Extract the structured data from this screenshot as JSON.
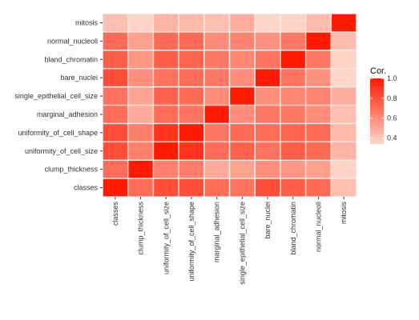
{
  "chart_data": {
    "type": "heatmap",
    "title": "",
    "xlabel": "",
    "ylabel": "",
    "variables": [
      "classes",
      "clump_thickness",
      "uniformity_of_cell_size",
      "uniformity_of_cell_shape",
      "marginal_adhesion",
      "single_epithelial_cell_size",
      "bare_nuclei",
      "bland_chromatin",
      "normal_nucleoli",
      "mitosis"
    ],
    "x_categories": [
      "classes",
      "clump_thickness",
      "uniformity_of_cell_size",
      "uniformity_of_cell_shape",
      "marginal_adhesion",
      "single_epithelial_cell_size",
      "bare_nuclei",
      "bland_chromatin",
      "normal_nucleoli",
      "mitosis"
    ],
    "y_categories_bottom_to_top": [
      "classes",
      "clump_thickness",
      "uniformity_of_cell_size",
      "uniformity_of_cell_shape",
      "marginal_adhesion",
      "single_epithelial_cell_size",
      "bare_nuclei",
      "bland_chromatin",
      "normal_nucleoli",
      "mitosis"
    ],
    "matrix": [
      [
        1.0,
        0.71,
        0.82,
        0.82,
        0.71,
        0.69,
        0.82,
        0.76,
        0.72,
        0.42
      ],
      [
        0.71,
        1.0,
        0.64,
        0.65,
        0.49,
        0.52,
        0.59,
        0.56,
        0.53,
        0.35
      ],
      [
        0.82,
        0.64,
        1.0,
        0.91,
        0.71,
        0.75,
        0.69,
        0.76,
        0.72,
        0.46
      ],
      [
        0.82,
        0.65,
        0.91,
        1.0,
        0.68,
        0.72,
        0.71,
        0.74,
        0.72,
        0.44
      ],
      [
        0.71,
        0.49,
        0.71,
        0.68,
        1.0,
        0.6,
        0.67,
        0.67,
        0.6,
        0.42
      ],
      [
        0.69,
        0.52,
        0.75,
        0.72,
        0.6,
        1.0,
        0.59,
        0.62,
        0.63,
        0.48
      ],
      [
        0.82,
        0.59,
        0.69,
        0.71,
        0.67,
        0.59,
        1.0,
        0.68,
        0.58,
        0.34
      ],
      [
        0.76,
        0.56,
        0.76,
        0.74,
        0.67,
        0.62,
        0.68,
        1.0,
        0.67,
        0.35
      ],
      [
        0.72,
        0.53,
        0.72,
        0.72,
        0.6,
        0.63,
        0.58,
        0.67,
        1.0,
        0.43
      ],
      [
        0.42,
        0.35,
        0.46,
        0.44,
        0.42,
        0.48,
        0.34,
        0.35,
        0.43,
        1.0
      ]
    ],
    "legend": {
      "title": "Cor.",
      "placement": "right",
      "range": [
        0.34,
        1.0
      ],
      "ticks": [
        0.4,
        0.6,
        0.8,
        1.0
      ],
      "tick_labels": [
        "0.4",
        "0.6",
        "0.8",
        "1.0"
      ]
    },
    "colors": {
      "low": "#FFD6C8",
      "high": "#FF1A00",
      "cell_border": "#ffffff",
      "panel_background": "#EBEBEB"
    },
    "grid": false
  }
}
